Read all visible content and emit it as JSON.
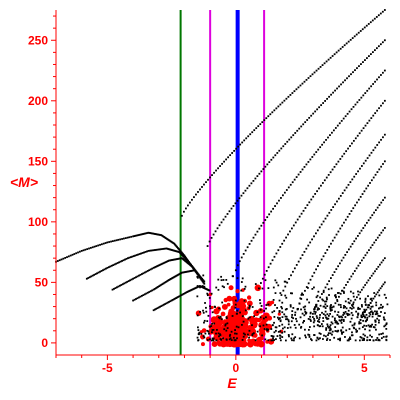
{
  "chart_data": {
    "type": "scatter",
    "title": "",
    "xlabel": "E",
    "ylabel": "<M>",
    "xlim": [
      -7,
      6
    ],
    "ylim": [
      -10,
      275
    ],
    "x_ticks": [
      -5,
      0,
      5
    ],
    "y_ticks": [
      0,
      50,
      100,
      150,
      200,
      250
    ],
    "grid": false,
    "legend": "none",
    "colors": {
      "axes": "#ff0000",
      "scatter_black": "#000000",
      "scatter_red": "#ff0000",
      "line_green": "#007700",
      "line_magenta": "#dd00dd",
      "line_blue": "#0000ff"
    },
    "vertical_lines": [
      {
        "x": -2.15,
        "color": "#007700"
      },
      {
        "x": -1.0,
        "color": "#dd00dd"
      },
      {
        "x": 0.07,
        "color": "#0000ff"
      },
      {
        "x": 1.1,
        "color": "#dd00dd"
      }
    ],
    "black_curves": [
      {
        "start": [
          -2.1,
          105
        ],
        "end": [
          5.8,
          275
        ]
      },
      {
        "start": [
          -1.1,
          80
        ],
        "end": [
          5.8,
          250
        ]
      },
      {
        "start": [
          0.0,
          60
        ],
        "end": [
          5.8,
          225
        ]
      },
      {
        "start": [
          0.9,
          45
        ],
        "end": [
          5.8,
          200
        ]
      },
      {
        "start": [
          1.7,
          35
        ],
        "end": [
          5.8,
          172
        ]
      },
      {
        "start": [
          2.4,
          28
        ],
        "end": [
          5.8,
          150
        ]
      },
      {
        "start": [
          3.0,
          24
        ],
        "end": [
          5.8,
          120
        ]
      },
      {
        "start": [
          3.6,
          20
        ],
        "end": [
          5.8,
          95
        ]
      },
      {
        "start": [
          4.2,
          18
        ],
        "end": [
          5.8,
          70
        ]
      },
      {
        "start": [
          4.8,
          16
        ],
        "end": [
          5.8,
          50
        ]
      }
    ],
    "left_arcs": [
      {
        "x": [
          -7.0,
          -6.0,
          -5.0,
          -4.0,
          -3.4,
          -2.9,
          -2.4,
          -2.0,
          -1.6,
          -1.2
        ],
        "y": [
          67,
          76,
          83,
          88,
          91,
          89,
          82,
          72,
          60,
          48
        ]
      },
      {
        "x": [
          -5.8,
          -5.0,
          -4.2,
          -3.4,
          -2.7,
          -2.2,
          -1.8,
          -1.4
        ],
        "y": [
          53,
          62,
          70,
          76,
          78,
          75,
          66,
          55
        ]
      },
      {
        "x": [
          -4.8,
          -4.0,
          -3.2,
          -2.6,
          -2.1,
          -1.7,
          -1.3
        ],
        "y": [
          44,
          53,
          62,
          68,
          70,
          63,
          52
        ]
      },
      {
        "x": [
          -4.0,
          -3.2,
          -2.6,
          -2.1,
          -1.6,
          -1.2
        ],
        "y": [
          35,
          44,
          52,
          58,
          60,
          50
        ]
      },
      {
        "x": [
          -3.2,
          -2.5,
          -1.9,
          -1.4,
          -1.0
        ],
        "y": [
          27,
          35,
          42,
          47,
          43
        ]
      }
    ],
    "red_cluster": {
      "x_range": [
        -1.7,
        2.0
      ],
      "y_range": [
        -2,
        50
      ],
      "center": [
        0.05,
        15
      ]
    }
  }
}
